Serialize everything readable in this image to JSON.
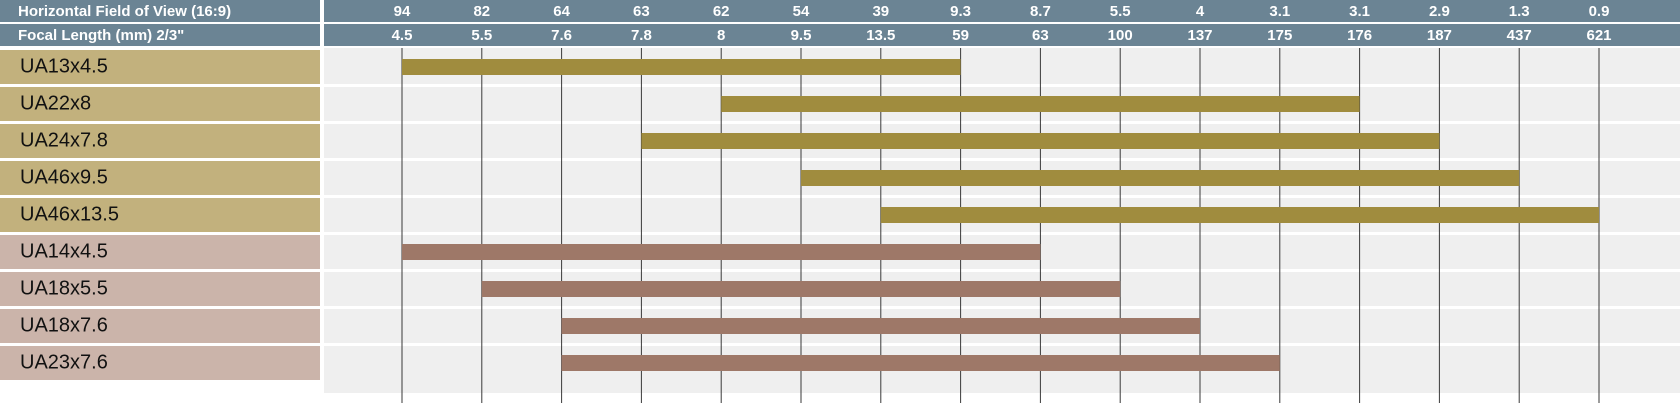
{
  "chart_data": {
    "type": "bar",
    "subtype": "range",
    "header_rows": [
      {
        "label": "Horizontal Field of View (16:9)",
        "ticks": [
          "94",
          "82",
          "64",
          "63",
          "62",
          "54",
          "39",
          "9.3",
          "8.7",
          "5.5",
          "4",
          "3.1",
          "3.1",
          "2.9",
          "1.3",
          "0.9"
        ]
      },
      {
        "label": "Focal Length (mm) 2/3\"",
        "ticks": [
          "4.5",
          "5.5",
          "7.6",
          "7.8",
          "8",
          "9.5",
          "13.5",
          "59",
          "63",
          "100",
          "137",
          "175",
          "176",
          "187",
          "437",
          "621"
        ]
      }
    ],
    "series": [
      {
        "lenses": [
          {
            "name": "UA13x4.5",
            "start": "4.5",
            "end": "59"
          },
          {
            "name": "UA22x8",
            "start": "8",
            "end": "176"
          },
          {
            "name": "UA24x7.8",
            "start": "7.8",
            "end": "187"
          },
          {
            "name": "UA46x9.5",
            "start": "9.5",
            "end": "437"
          },
          {
            "name": "UA46x13.5",
            "start": "13.5",
            "end": "621"
          }
        ]
      },
      {
        "lenses": [
          {
            "name": "UA14x4.5",
            "start": "4.5",
            "end": "63"
          },
          {
            "name": "UA18x5.5",
            "start": "5.5",
            "end": "100"
          },
          {
            "name": "UA18x7.6",
            "start": "7.6",
            "end": "137"
          },
          {
            "name": "UA23x7.6",
            "start": "7.6",
            "end": "175"
          }
        ]
      }
    ],
    "grid": true
  },
  "colors": {
    "header_bg": "#6b8494",
    "series_label_bg": [
      "#c2b17d",
      "#cbb4aa"
    ],
    "series_bar": [
      "#a08c3e",
      "#9e7868"
    ],
    "plot_bg": "#efefef",
    "row_separator": "#ffffff",
    "gridline": "#3a3a3a"
  }
}
